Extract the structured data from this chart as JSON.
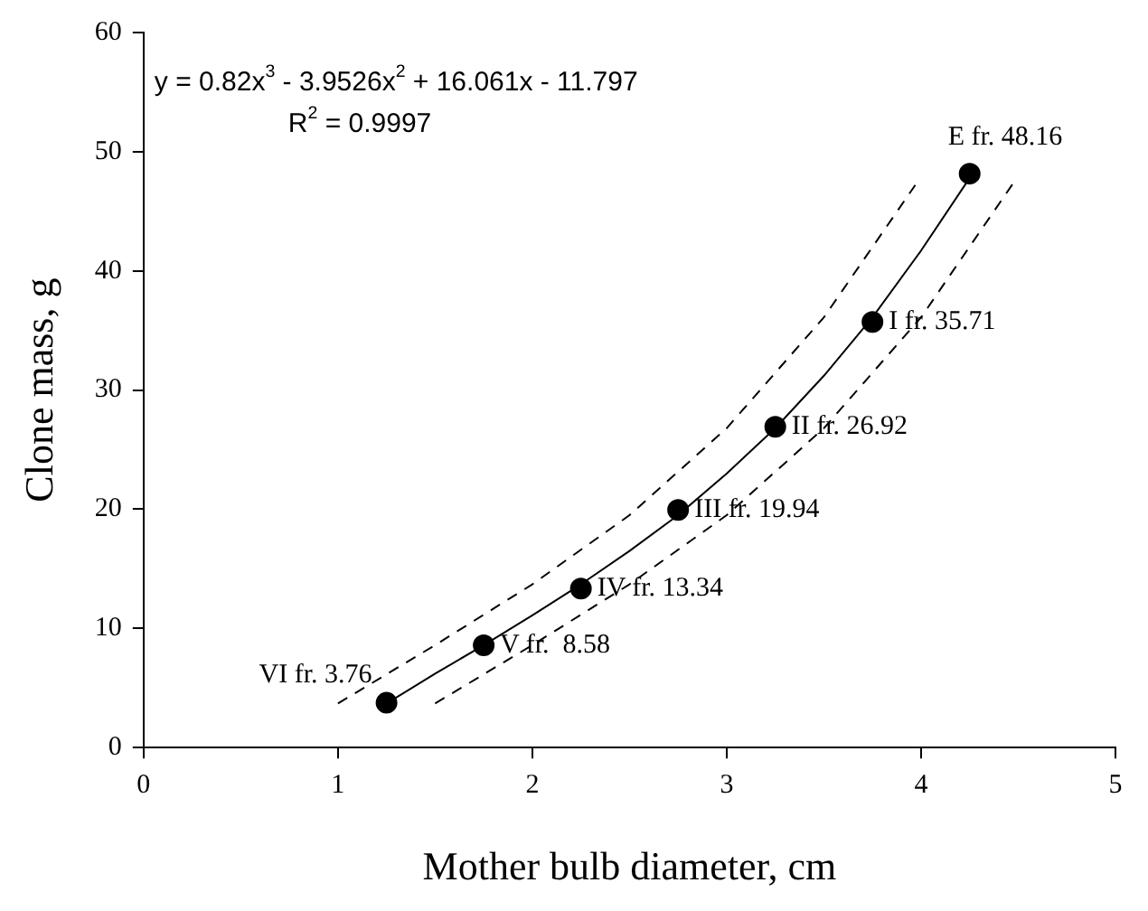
{
  "chart_data": {
    "type": "scatter",
    "xlabel": "Mother bulb diameter, cm",
    "ylabel": "Clone mass, g",
    "annotations": [
      "y = 0.82x$^{3}$ - 3.9526x$^{2}$ + 16.061x - 11.797",
      "R$^{2}$ = 0.9997"
    ],
    "xlim": [
      0,
      5
    ],
    "xticks": [
      0,
      1,
      2,
      3,
      4,
      5
    ],
    "ylim": [
      0,
      60
    ],
    "yticks": [
      0,
      10,
      20,
      30,
      40,
      50,
      60
    ],
    "grid": false,
    "legend": false,
    "marker": "circle",
    "series": [
      {
        "type": "line",
        "color": "#000000",
        "line_style": "solid",
        "marker": "none",
        "x": [
          1.25,
          1.5,
          1.75,
          2.0,
          2.25,
          2.5,
          2.75,
          3.0,
          3.25,
          3.5,
          3.75,
          4.0,
          4.25
        ],
        "values": [
          3.7,
          6.2,
          8.6,
          11.1,
          13.7,
          16.5,
          19.5,
          23.0,
          26.8,
          31.2,
          36.1,
          41.7,
          47.8
        ]
      },
      {
        "type": "line",
        "color": "#000000",
        "line_style": "dashed",
        "marker": "none",
        "x": [
          1.0,
          1.5,
          2.0,
          2.5,
          3.0,
          3.5,
          3.97
        ],
        "values": [
          3.7,
          8.6,
          13.7,
          19.5,
          26.8,
          36.1,
          47.2
        ]
      },
      {
        "type": "line",
        "color": "#000000",
        "line_style": "dashed",
        "marker": "none",
        "x": [
          1.5,
          2.0,
          2.5,
          3.0,
          3.5,
          4.0,
          4.48
        ],
        "values": [
          3.7,
          8.6,
          13.7,
          19.5,
          26.8,
          36.1,
          47.5
        ]
      },
      {
        "color": "#000000",
        "x": [
          1.25,
          1.75,
          2.25,
          2.75,
          3.25,
          3.75,
          4.25
        ],
        "values": [
          3.76,
          8.58,
          13.34,
          19.94,
          26.92,
          35.71,
          48.16
        ],
        "value_labels": [
          "VI fr. 3.76",
          "V fr.  8.58",
          "IV fr. 13.34",
          "III fr. 19.94",
          "II fr. 26.92",
          "I fr. 35.71",
          "E fr. 48.16"
        ]
      }
    ]
  }
}
